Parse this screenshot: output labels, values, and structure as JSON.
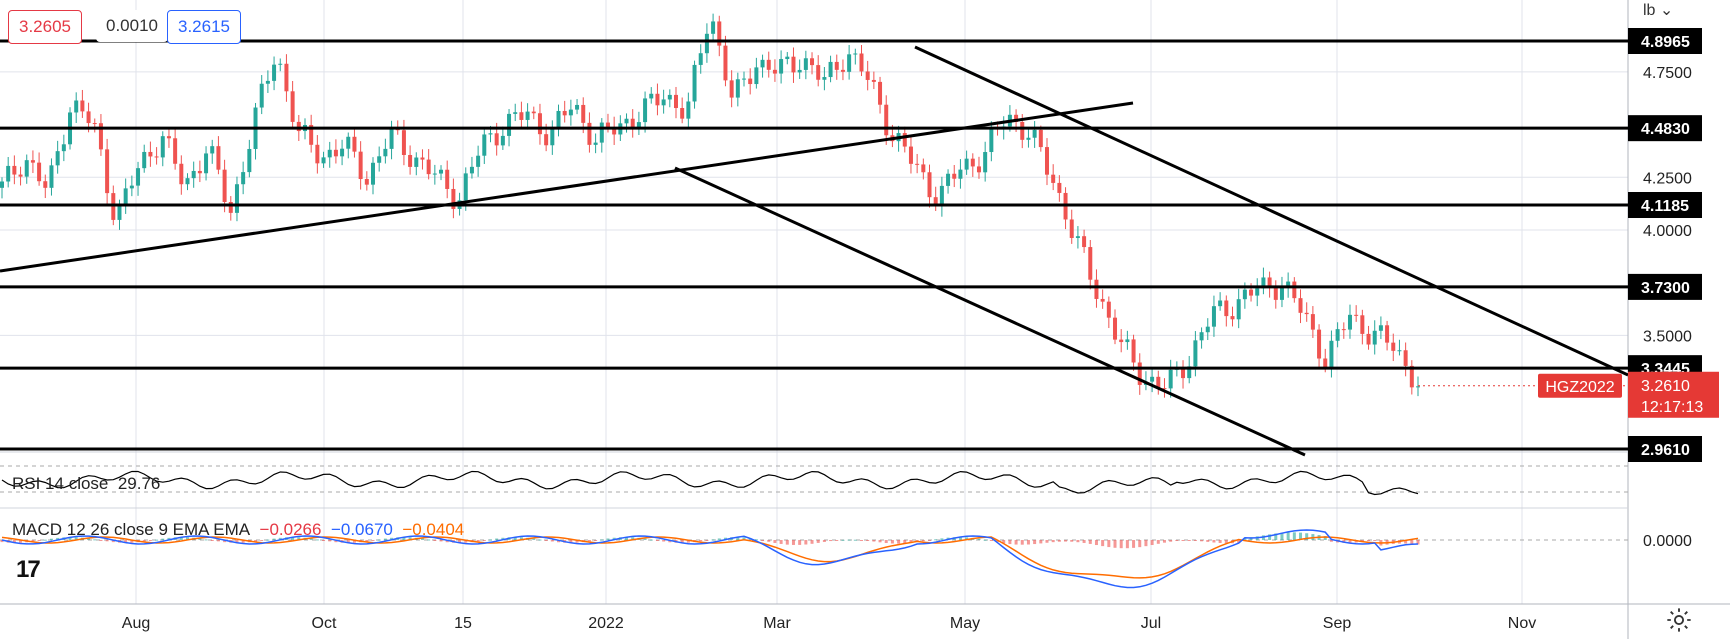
{
  "quote": {
    "bid": "3.2605",
    "spread": "0.0010",
    "ask": "3.2615"
  },
  "axis_unit": "lb",
  "symbol": "HGZ2022",
  "last_price": "3.2610",
  "countdown": "12:17:13",
  "colors": {
    "up": "#26a69a",
    "down": "#ef5350",
    "price_tag": "#e53935",
    "macd": "#2962ff",
    "signal": "#ff6d00",
    "rsi": "#000000"
  },
  "rsi": {
    "label": "RSI 14 close",
    "value": "29.76"
  },
  "macd": {
    "label": "MACD 12 26 close 9 EMA EMA",
    "hist": "−0.0266",
    "macd": "−0.0670",
    "signal": "−0.0404",
    "zero_label": "0.0000"
  },
  "chart_data": {
    "type": "candlestick",
    "x_ticks": [
      "Aug",
      "Oct",
      "15",
      "2022",
      "Mar",
      "May",
      "Jul",
      "Sep",
      "Nov"
    ],
    "y_ticks": [
      "4.7500",
      "4.2500",
      "4.0000",
      "3.5000"
    ],
    "ylim": [
      2.96,
      5.05
    ],
    "levels": [
      "4.8965",
      "4.4830",
      "4.1185",
      "3.7300",
      "3.3445",
      "2.9610"
    ],
    "price_path": [
      4.2,
      4.35,
      4.18,
      4.6,
      4.5,
      4.05,
      4.3,
      4.45,
      4.2,
      4.4,
      4.08,
      4.5,
      4.85,
      4.45,
      4.35,
      4.4,
      4.25,
      4.45,
      4.35,
      4.25,
      4.15,
      4.4,
      4.5,
      4.55,
      4.45,
      4.6,
      4.42,
      4.5,
      4.55,
      4.65,
      4.55,
      5.05,
      4.6,
      4.8,
      4.75,
      4.82,
      4.7,
      4.85,
      4.7,
      4.45,
      4.3,
      4.15,
      4.3,
      4.35,
      4.55,
      4.45,
      4.25,
      3.95,
      3.7,
      3.45,
      3.3,
      3.25,
      3.4,
      3.6,
      3.65,
      3.72,
      3.75,
      3.6,
      3.38,
      3.6,
      3.5,
      3.45,
      3.26
    ],
    "trendlines": [
      {
        "from": [
          "Jun 2021",
          3.8
        ],
        "to": [
          "May 2022",
          4.6
        ]
      },
      {
        "from": [
          "Jan 2022",
          4.3
        ],
        "to": [
          "Aug 2022",
          2.96
        ]
      },
      {
        "from": [
          "Apr 2022",
          4.88
        ],
        "to": [
          "Oct 2022",
          3.34
        ]
      }
    ]
  }
}
